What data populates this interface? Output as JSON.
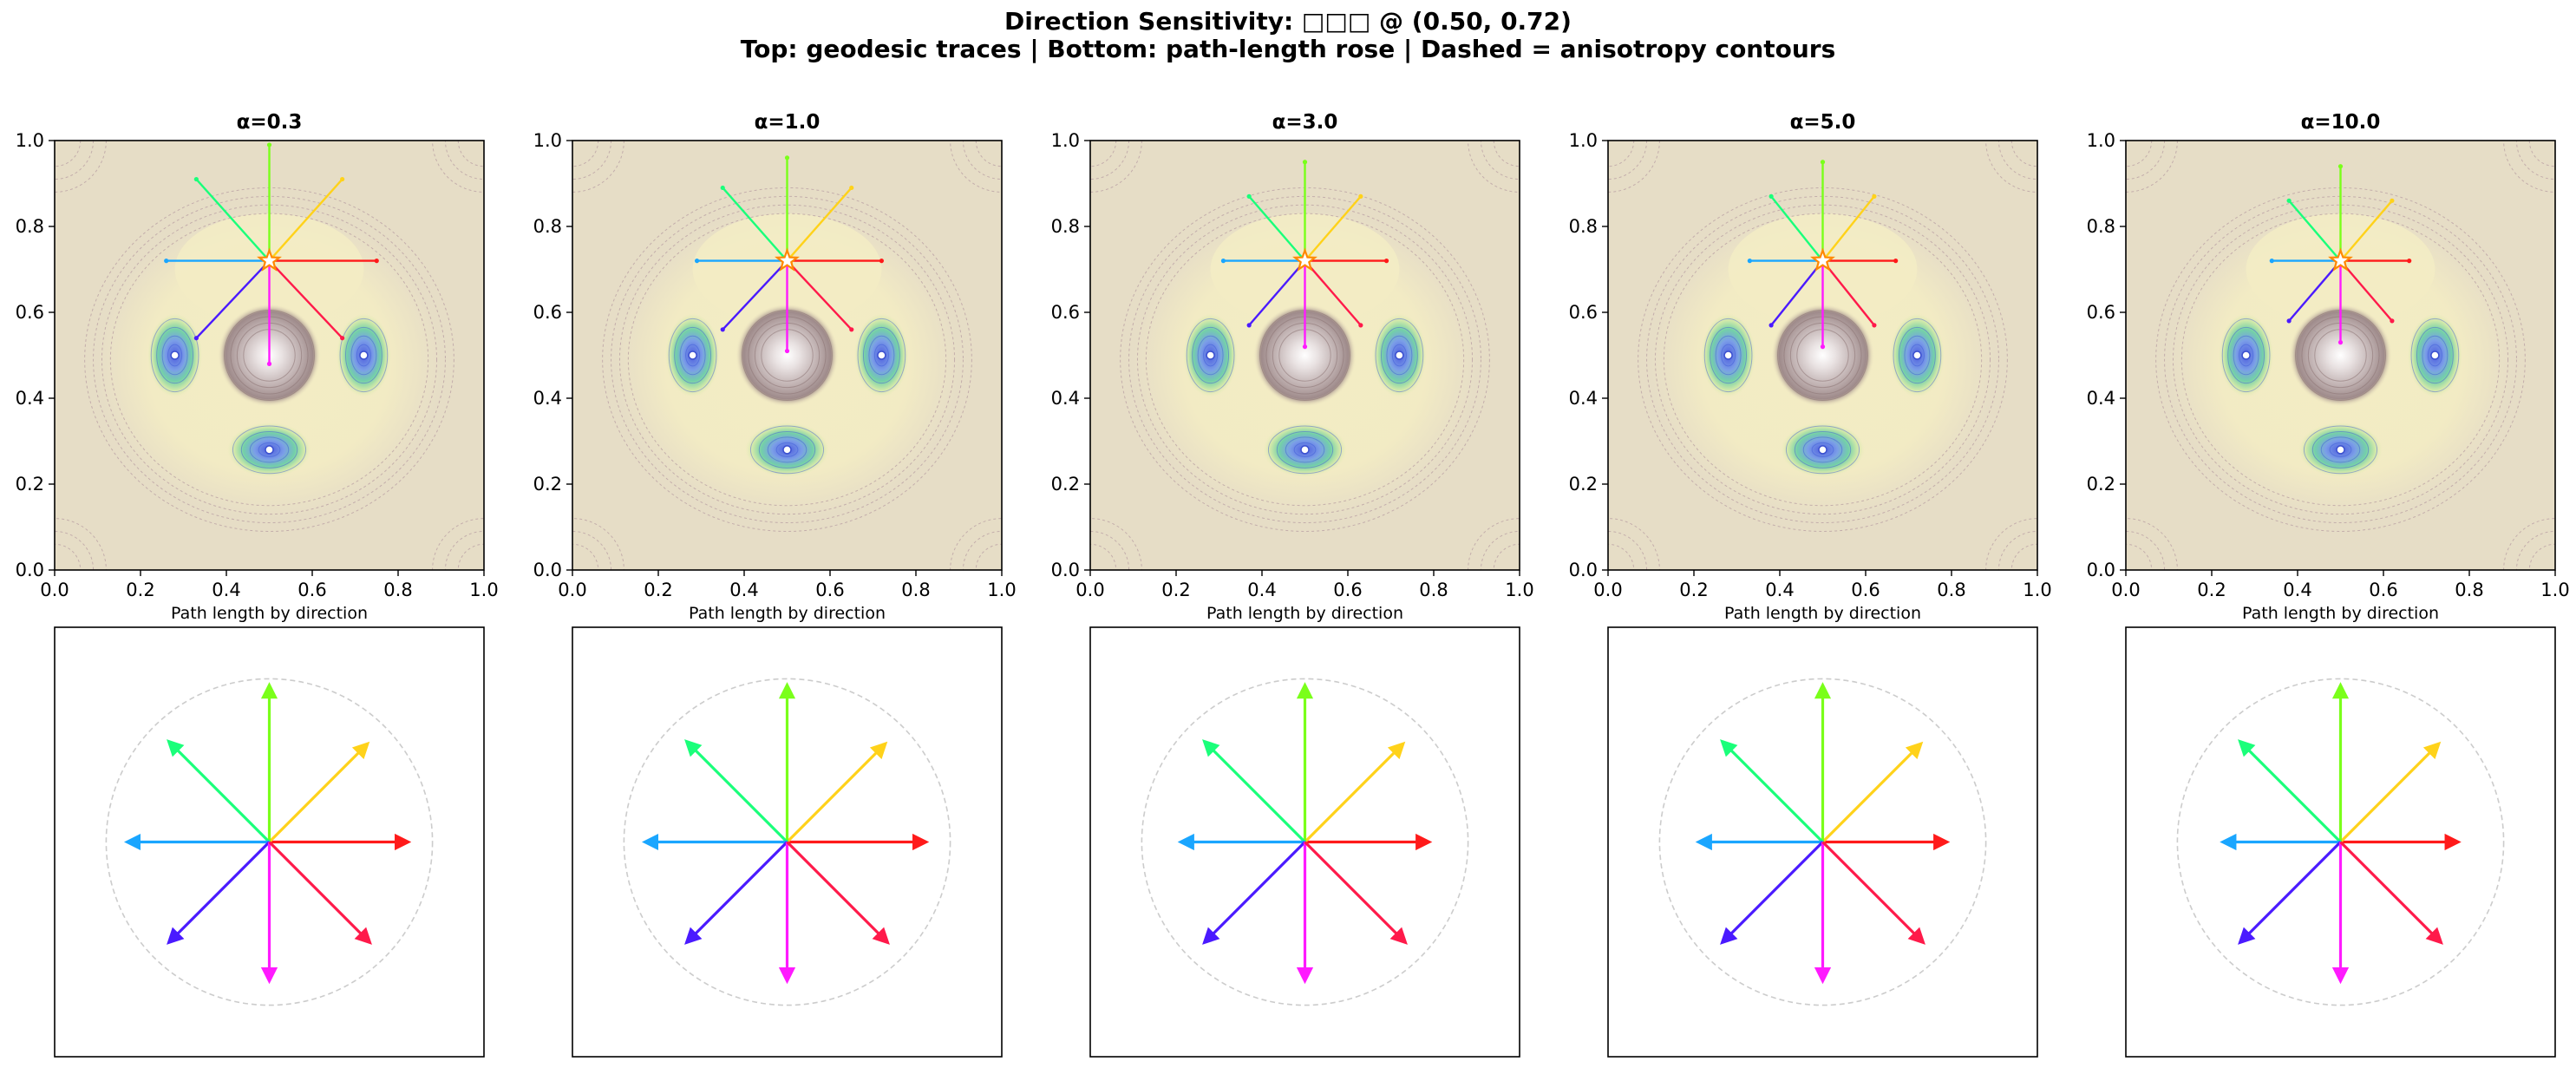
{
  "figure": {
    "title": "Direction Sensitivity: □□□ @ (0.50, 0.72)",
    "subtitle": "Top: geodesic traces | Bottom: path-length rose | Dashed = anisotropy contours"
  },
  "chart_data": {
    "type": "scatter",
    "rose_label": "Path length by direction",
    "axis": {
      "xlim": [
        0,
        1
      ],
      "ylim": [
        0,
        1
      ],
      "ticks": [
        "0.0",
        "0.2",
        "0.4",
        "0.6",
        "0.8",
        "1.0"
      ]
    },
    "origin": [
      0.5,
      0.72
    ],
    "wells": [
      [
        0.28,
        0.5
      ],
      [
        0.72,
        0.5
      ],
      [
        0.5,
        0.28
      ]
    ],
    "bump": [
      0.5,
      0.5
    ],
    "directions": [
      {
        "angle_deg": 0,
        "color": "#ff1a1a"
      },
      {
        "angle_deg": 45,
        "color": "#ffd21a"
      },
      {
        "angle_deg": 90,
        "color": "#7aff1a"
      },
      {
        "angle_deg": 135,
        "color": "#1aff7a"
      },
      {
        "angle_deg": 180,
        "color": "#1aa6ff"
      },
      {
        "angle_deg": 225,
        "color": "#4a1aff"
      },
      {
        "angle_deg": 270,
        "color": "#ff1aff"
      },
      {
        "angle_deg": 315,
        "color": "#ff1a4a"
      }
    ],
    "panels": [
      {
        "title": "α=0.3",
        "alpha": 0.3,
        "endpoints": [
          [
            0.75,
            0.72
          ],
          [
            0.67,
            0.91
          ],
          [
            0.5,
            0.99
          ],
          [
            0.33,
            0.91
          ],
          [
            0.26,
            0.72
          ],
          [
            0.33,
            0.54
          ],
          [
            0.5,
            0.48
          ],
          [
            0.67,
            0.54
          ]
        ],
        "rose_lengths": [
          0.85,
          0.85,
          0.96,
          0.87,
          0.87,
          0.87,
          0.85,
          0.87
        ]
      },
      {
        "title": "α=1.0",
        "alpha": 1.0,
        "endpoints": [
          [
            0.72,
            0.72
          ],
          [
            0.65,
            0.89
          ],
          [
            0.5,
            0.96
          ],
          [
            0.35,
            0.89
          ],
          [
            0.29,
            0.72
          ],
          [
            0.35,
            0.56
          ],
          [
            0.5,
            0.51
          ],
          [
            0.65,
            0.56
          ]
        ],
        "rose_lengths": [
          0.85,
          0.85,
          0.96,
          0.87,
          0.87,
          0.87,
          0.85,
          0.87
        ]
      },
      {
        "title": "α=3.0",
        "alpha": 3.0,
        "endpoints": [
          [
            0.69,
            0.72
          ],
          [
            0.63,
            0.87
          ],
          [
            0.5,
            0.95
          ],
          [
            0.37,
            0.87
          ],
          [
            0.31,
            0.72
          ],
          [
            0.37,
            0.57
          ],
          [
            0.5,
            0.52
          ],
          [
            0.63,
            0.57
          ]
        ],
        "rose_lengths": [
          0.76,
          0.85,
          0.96,
          0.87,
          0.76,
          0.87,
          0.85,
          0.87
        ]
      },
      {
        "title": "α=5.0",
        "alpha": 5.0,
        "endpoints": [
          [
            0.67,
            0.72
          ],
          [
            0.62,
            0.87
          ],
          [
            0.5,
            0.95
          ],
          [
            0.38,
            0.87
          ],
          [
            0.33,
            0.72
          ],
          [
            0.38,
            0.57
          ],
          [
            0.5,
            0.52
          ],
          [
            0.62,
            0.57
          ]
        ],
        "rose_lengths": [
          0.76,
          0.85,
          0.96,
          0.87,
          0.76,
          0.87,
          0.85,
          0.87
        ]
      },
      {
        "title": "α=10.0",
        "alpha": 10.0,
        "endpoints": [
          [
            0.66,
            0.72
          ],
          [
            0.62,
            0.86
          ],
          [
            0.5,
            0.94
          ],
          [
            0.38,
            0.86
          ],
          [
            0.34,
            0.72
          ],
          [
            0.38,
            0.58
          ],
          [
            0.5,
            0.53
          ],
          [
            0.62,
            0.58
          ]
        ],
        "rose_lengths": [
          0.72,
          0.85,
          0.96,
          0.87,
          0.72,
          0.87,
          0.85,
          0.87
        ]
      }
    ],
    "colors": {
      "background": "#e6ddc6",
      "halo": "#f3ecc4",
      "well_outer": "#cfe9a6",
      "well_mid": "#73d0a8",
      "well_inner": "#7b9ee8",
      "bump_dark": "#9e8a8a",
      "contour": "#b59aa0",
      "rose_circle": "#cccccc",
      "star": "#ff8800"
    }
  }
}
